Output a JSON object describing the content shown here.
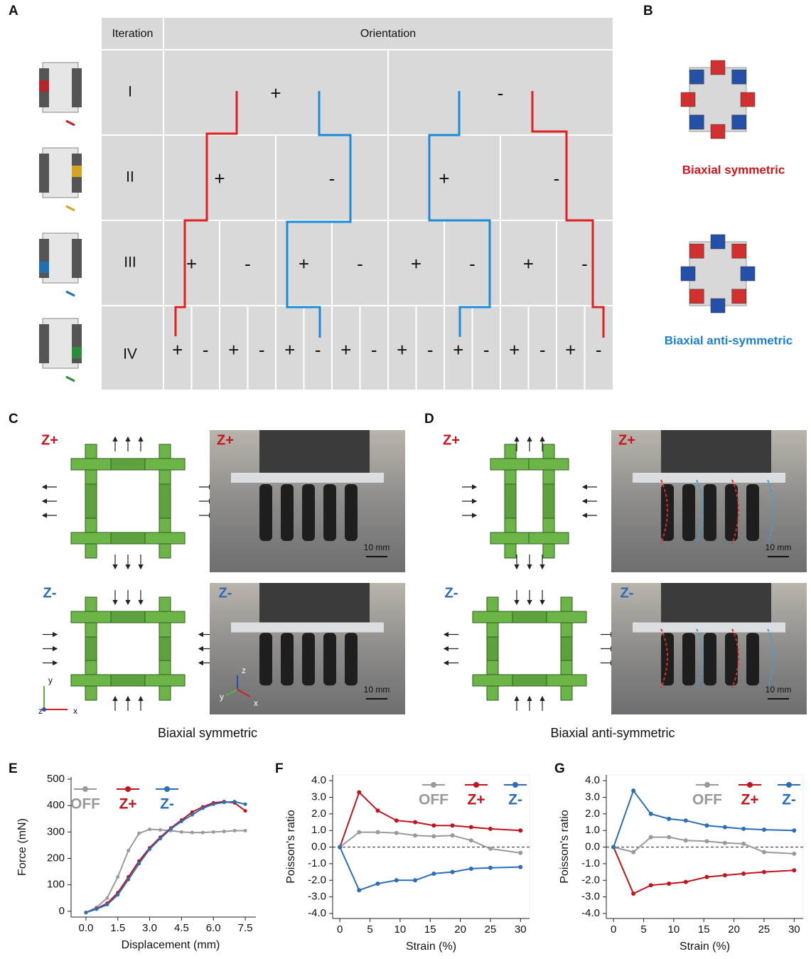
{
  "panel_labels": [
    "A",
    "B",
    "C",
    "D",
    "E",
    "F",
    "G"
  ],
  "table": {
    "header": [
      "Iteration",
      "Orientation"
    ],
    "rows": [
      {
        "label": "I",
        "signs": [
          "+",
          "-"
        ]
      },
      {
        "label": "II",
        "signs": [
          "+",
          "-",
          "+",
          "-"
        ]
      },
      {
        "label": "III",
        "signs": [
          "+",
          "-",
          "+",
          "-",
          "+",
          "-",
          "+",
          "-"
        ]
      },
      {
        "label": "IV",
        "signs": [
          "+",
          "-",
          "+",
          "-",
          "+",
          "-",
          "+",
          "-",
          "+",
          "-",
          "+",
          "-",
          "+",
          "-",
          "+",
          "-"
        ]
      }
    ]
  },
  "panel_b": {
    "labels": [
      "Biaxial symmetric",
      "Biaxial anti-symmetric"
    ]
  },
  "panel_c": {
    "diagrams": [
      "Z+",
      "Z-"
    ],
    "photos": [
      {
        "label": "Z+",
        "scale": "10 mm"
      },
      {
        "label": "Z-",
        "scale": "10 mm"
      }
    ],
    "triad": [
      "y",
      "z",
      "x"
    ],
    "photo_triad": [
      "z",
      "y",
      "x"
    ],
    "caption": "Biaxial symmetric"
  },
  "panel_d": {
    "diagrams": [
      "Z+",
      "Z-"
    ],
    "photos": [
      {
        "label": "Z+",
        "scale": "10 mm"
      },
      {
        "label": "Z-",
        "scale": "10 mm"
      }
    ],
    "caption": "Biaxial anti-symmetric"
  },
  "chart_data": [
    {
      "type": "line",
      "xlabel": "Displacement (mm)",
      "ylabel": "Force (mN)",
      "legend": "top-left",
      "x": [
        0,
        0.5,
        1.0,
        1.5,
        2.0,
        2.5,
        3.0,
        3.5,
        4.0,
        4.5,
        5.0,
        5.5,
        6.0,
        6.5,
        7.0,
        7.5
      ],
      "series": [
        {
          "name": "OFF",
          "color": "#9a9a9a",
          "values": [
            -5,
            15,
            50,
            130,
            230,
            295,
            310,
            308,
            305,
            300,
            298,
            298,
            300,
            302,
            305,
            305
          ]
        },
        {
          "name": "Z+",
          "color": "#c0141e",
          "values": [
            -5,
            10,
            30,
            70,
            130,
            190,
            240,
            280,
            315,
            345,
            375,
            395,
            410,
            415,
            410,
            380
          ]
        },
        {
          "name": "Z-",
          "color": "#2c6db8",
          "values": [
            -5,
            8,
            25,
            62,
            120,
            180,
            235,
            275,
            312,
            340,
            365,
            390,
            405,
            412,
            415,
            405
          ]
        }
      ],
      "xlim": [
        -0.7,
        8.0
      ],
      "ylim": [
        -22,
        508
      ],
      "xticks": [
        {
          "value": 0,
          "label": "0.0"
        },
        1.5,
        {
          "value": 3,
          "label": "3.0"
        },
        4.5,
        {
          "value": 6,
          "label": "6.0"
        },
        7.5
      ],
      "yticks": [
        0,
        100,
        200,
        300,
        400,
        500
      ]
    },
    {
      "type": "line",
      "xlabel": "Strain (%)",
      "ylabel": "Poisson's ratio",
      "legend": "top-right",
      "zero_line": true,
      "x": [
        0,
        3.2,
        6.3,
        9.4,
        12.5,
        15.6,
        18.7,
        21.8,
        25,
        30
      ],
      "series": [
        {
          "name": "OFF",
          "color": "#9a9a9a",
          "values": [
            0,
            0.9,
            0.9,
            0.85,
            0.7,
            0.65,
            0.7,
            0.4,
            -0.1,
            -0.35
          ]
        },
        {
          "name": "Z+",
          "color": "#c0141e",
          "values": [
            0,
            3.3,
            2.2,
            1.6,
            1.5,
            1.3,
            1.3,
            1.2,
            1.1,
            1.0
          ]
        },
        {
          "name": "Z-",
          "color": "#2c6db8",
          "values": [
            0,
            -2.6,
            -2.2,
            -2.0,
            -2.0,
            -1.6,
            -1.5,
            -1.3,
            -1.25,
            -1.2
          ]
        }
      ],
      "xlim": [
        -1.2,
        31.5
      ],
      "ylim": [
        -4.3,
        4.35
      ],
      "xticks": [
        0,
        5,
        10,
        15,
        20,
        25,
        30
      ],
      "yticks": [
        {
          "value": -4,
          "label": "-4.0"
        },
        {
          "value": -3,
          "label": "-3.0"
        },
        {
          "value": -2,
          "label": "-2.0"
        },
        {
          "value": -1,
          "label": "-1.0"
        },
        {
          "value": 0,
          "label": "0.0"
        },
        {
          "value": 1,
          "label": "1.0"
        },
        {
          "value": 2,
          "label": "2.0"
        },
        {
          "value": 3,
          "label": "3.0"
        },
        {
          "value": 4,
          "label": "4.0"
        }
      ]
    },
    {
      "type": "line",
      "xlabel": "Strain (%)",
      "ylabel": "Poisson's ratio",
      "legend": "top-right",
      "zero_line": true,
      "x": [
        0,
        3.3,
        6.2,
        9.2,
        12,
        15.5,
        18.5,
        21.6,
        25,
        30
      ],
      "series": [
        {
          "name": "OFF",
          "color": "#9a9a9a",
          "values": [
            0,
            -0.3,
            0.6,
            0.6,
            0.4,
            0.35,
            0.25,
            0.2,
            -0.3,
            -0.4
          ]
        },
        {
          "name": "Z+",
          "color": "#c0141e",
          "values": [
            0,
            -2.8,
            -2.3,
            -2.2,
            -2.1,
            -1.8,
            -1.7,
            -1.6,
            -1.5,
            -1.4
          ]
        },
        {
          "name": "Z-",
          "color": "#2c6db8",
          "values": [
            0,
            3.4,
            2.0,
            1.7,
            1.6,
            1.3,
            1.2,
            1.1,
            1.05,
            1.0
          ]
        }
      ],
      "xlim": [
        -1.2,
        31.5
      ],
      "ylim": [
        -4.3,
        4.35
      ],
      "xticks": [
        0,
        5,
        10,
        15,
        20,
        25,
        30
      ],
      "yticks": [
        {
          "value": -4,
          "label": "-4.0"
        },
        {
          "value": -3,
          "label": "-3.0"
        },
        {
          "value": -2,
          "label": "-2.0"
        },
        {
          "value": -1,
          "label": "-1.0"
        },
        {
          "value": 0,
          "label": "0.0"
        },
        {
          "value": 1,
          "label": "1.0"
        },
        {
          "value": 2,
          "label": "2.0"
        },
        {
          "value": 3,
          "label": "3.0"
        },
        {
          "value": 4,
          "label": "4.0"
        }
      ]
    }
  ]
}
